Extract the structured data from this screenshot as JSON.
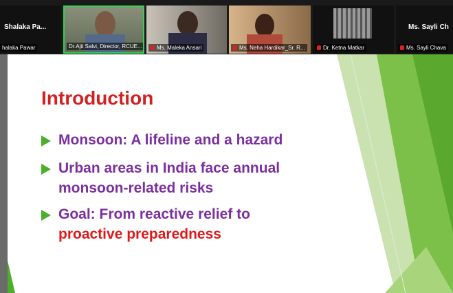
{
  "participants": [
    {
      "top_name": "Shalaka Pa...",
      "label": "halaka Pawar"
    },
    {
      "label": "Dr.Ajit Salvi, Director, RCUE..."
    },
    {
      "label": "Ms. Maleka Ansari"
    },
    {
      "label": "Ms. Neha Hardikar_Sr. R..."
    },
    {
      "label": "Dr. Ketna Matkar"
    },
    {
      "top_name": "Ms. Sayli Ch",
      "label": "Ms. Sayli Chava"
    }
  ],
  "slide": {
    "title": "Introduction",
    "bullets": [
      {
        "text": "Monsoon: A lifeline and a hazard"
      },
      {
        "text": "Urban areas in India face annual monsoon-related risks"
      },
      {
        "text": "Goal: From reactive relief to",
        "highlight": "proactive preparedness"
      }
    ]
  }
}
